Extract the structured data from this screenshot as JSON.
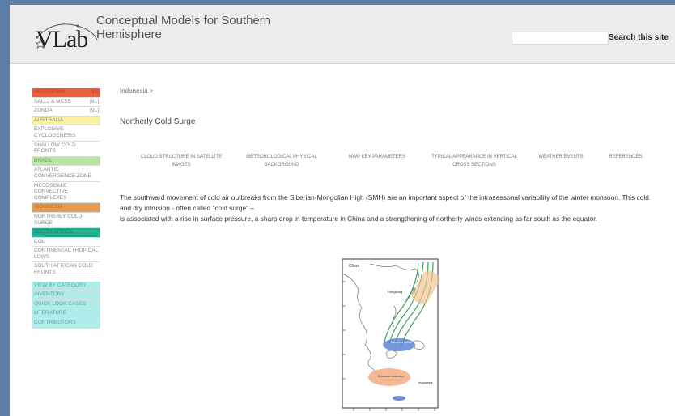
{
  "header": {
    "logo_text": "VLab",
    "title": "Conceptual Models for Southern Hemisphere",
    "search_placeholder": "",
    "search_button": "Search this site"
  },
  "sidebar": {
    "items": [
      {
        "label": "ARGENTINA",
        "count": "[11]"
      },
      {
        "label": "SALLJ & MCSs",
        "count": "[81]"
      },
      {
        "label": "ZONDA",
        "count": "[91]"
      },
      {
        "label": "AUSTRALIA"
      },
      {
        "label": "EXPLOSIVE CYCLOGENESIS"
      },
      {
        "label": "SHALLOW COLD FRONTS"
      },
      {
        "label": "BRAZIL"
      },
      {
        "label": "ATLANTIC CONVERGENCE ZONE"
      },
      {
        "label": "MESOSCALE CONVECTIVE COMPLEXES"
      },
      {
        "label": "INDONESIA"
      },
      {
        "label": "NORTHERLY COLD SURGE"
      },
      {
        "label": "SOUTH AFRICA"
      },
      {
        "label": "COL"
      },
      {
        "label": "CONTINENTAL TROPICAL LOWS"
      },
      {
        "label": "SOUTH AFRICAN COLD FRONTS"
      },
      {
        "label": "VIEW BY CATEGORY"
      },
      {
        "label": "INVENTORY"
      },
      {
        "label": "QUICK LOOK CASES"
      },
      {
        "label": "LITERATURE"
      },
      {
        "label": "CONTRIBUTORS"
      }
    ]
  },
  "breadcrumb": "Indonesia >",
  "page_title": "Northerly Cold Surge",
  "tabs": [
    {
      "line1": "CLOUD STRUCTURE IN SATELLITE",
      "line2": "IMAGES"
    },
    {
      "line1": "METEOROLOGICAL PHYSICAL",
      "line2": "BACKGROUND"
    },
    {
      "line1": "NWP KEY PARAMETERS",
      "line2": ""
    },
    {
      "line1": "TYPICAL APPEARANCE IN VERTICAL",
      "line2": "CROSS SECTIONS"
    },
    {
      "line1": "WEATHER EVENTS",
      "line2": ""
    },
    {
      "line1": "REFERENCES",
      "line2": ""
    }
  ],
  "body": {
    "paragraph1": "The southward movement of cold air outbreaks from the Siberian-Mongolian High (SMH) are an important aspect  of the intraseasonal variability of the winter monsoon. This cold and dry intrusion - often called \"cold surge\" –",
    "paragraph2": "is associated with a rise in surface pressure, a sharp drop in temperature in China and a strengthening of northerly winds extending as far south as the equator."
  },
  "figure": {
    "label_top": "China",
    "label_city": "Hongkong",
    "label_box": "Cold surge",
    "label_oval1": "Equatorial vortex",
    "label_oval2": "Enhanced convection",
    "label_land": "Indonesia"
  },
  "colors": {
    "argentina": "#e8603a",
    "australia": "#f7f1a1",
    "brazil": "#bde4a7",
    "indonesia": "#e69b55",
    "south_africa": "#1fae8f",
    "utility": "#aeecea",
    "surge_lines": "#2e9b4a"
  }
}
